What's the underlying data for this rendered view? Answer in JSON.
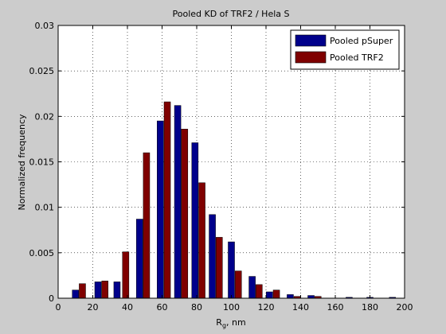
{
  "chart_data": {
    "type": "bar",
    "title": "Pooled KD of TRF2 / Hela S",
    "xlabel_main": "R",
    "xlabel_sub": "g",
    "xlabel_rest": ", nm",
    "ylabel": "Normalized frequency",
    "xlim": [
      0,
      200
    ],
    "ylim": [
      0,
      0.03
    ],
    "xticks": [
      0,
      20,
      40,
      60,
      80,
      100,
      120,
      140,
      160,
      180,
      200
    ],
    "yticks": [
      0,
      0.005,
      0.01,
      0.015,
      0.02,
      0.025,
      0.03
    ],
    "xtick_labels": [
      "0",
      "20",
      "40",
      "60",
      "80",
      "100",
      "120",
      "140",
      "160",
      "180",
      "200"
    ],
    "ytick_labels": [
      "0",
      "0.005",
      "0.01",
      "0.015",
      "0.02",
      "0.025",
      "0.03"
    ],
    "grid": true,
    "legend_position": "top-right",
    "bin_centers": [
      12.5,
      27.5,
      42.5,
      57.5,
      72.5,
      87.5,
      102.5,
      117.5,
      132.5,
      147.5,
      162.5,
      177.5,
      192.5
    ],
    "series": [
      {
        "name": "Pooled pSuper",
        "color": "#00008b",
        "values": [
          0.0009,
          0.0018,
          0.0018,
          0.0087,
          0.0195,
          0.0212,
          0.0171,
          0.0092,
          0.0062,
          0.0024,
          0.0007,
          0.0004,
          0.0003,
          0.0001,
          0.0001,
          0.0001
        ]
      },
      {
        "name": "Pooled TRF2",
        "color": "#7f0000",
        "values": [
          0.0016,
          0.0019,
          0.0051,
          0.016,
          0.0216,
          0.0186,
          0.0127,
          0.0067,
          0.003,
          0.0015,
          0.0009,
          0.0002,
          0.0002,
          0.0,
          0.0,
          0.0
        ]
      }
    ],
    "bins": [
      10,
      25,
      35,
      45,
      55,
      65,
      75,
      85,
      95,
      105,
      115,
      125,
      135,
      145,
      155,
      165
    ],
    "bins_psuper": [
      10,
      23,
      34,
      47,
      59,
      69,
      79,
      89,
      100,
      112,
      122,
      134,
      146,
      168,
      180,
      193
    ],
    "bins_trf2": [
      14,
      27,
      39,
      51,
      63,
      73,
      83,
      93,
      104,
      116,
      126,
      138,
      150,
      172,
      184,
      197
    ]
  }
}
